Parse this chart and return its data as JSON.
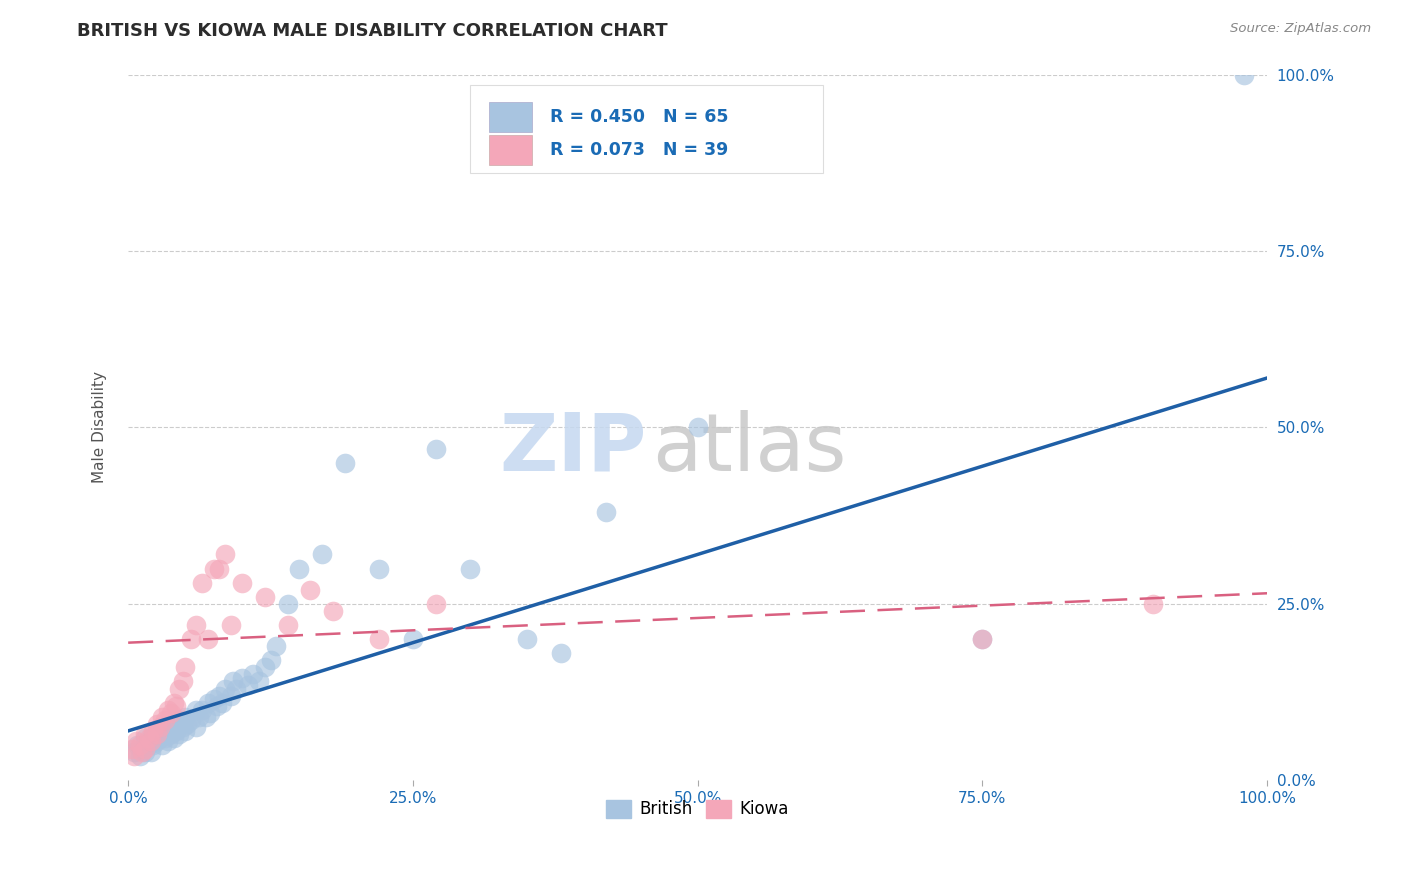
{
  "title": "BRITISH VS KIOWA MALE DISABILITY CORRELATION CHART",
  "source": "Source: ZipAtlas.com",
  "ylabel": "Male Disability",
  "xlim": [
    0.0,
    1.0
  ],
  "ylim": [
    0.0,
    1.0
  ],
  "british_R": 0.45,
  "british_N": 65,
  "kiowa_R": 0.073,
  "kiowa_N": 39,
  "british_color": "#a8c4e0",
  "kiowa_color": "#f4a7b9",
  "british_line_color": "#1f5fa6",
  "kiowa_line_color": "#d96080",
  "british_line_x0": 0.0,
  "british_line_y0": 0.07,
  "british_line_x1": 1.0,
  "british_line_y1": 0.57,
  "kiowa_line_x0": 0.0,
  "kiowa_line_y0": 0.195,
  "kiowa_line_x1": 1.0,
  "kiowa_line_y1": 0.265,
  "british_scatter_x": [
    0.005,
    0.008,
    0.01,
    0.012,
    0.015,
    0.015,
    0.018,
    0.02,
    0.02,
    0.022,
    0.025,
    0.025,
    0.028,
    0.03,
    0.03,
    0.032,
    0.035,
    0.035,
    0.038,
    0.04,
    0.04,
    0.042,
    0.045,
    0.045,
    0.048,
    0.05,
    0.05,
    0.052,
    0.055,
    0.06,
    0.06,
    0.062,
    0.065,
    0.068,
    0.07,
    0.072,
    0.075,
    0.078,
    0.08,
    0.082,
    0.085,
    0.09,
    0.092,
    0.095,
    0.1,
    0.105,
    0.11,
    0.115,
    0.12,
    0.125,
    0.13,
    0.14,
    0.15,
    0.17,
    0.19,
    0.22,
    0.25,
    0.27,
    0.3,
    0.35,
    0.38,
    0.42,
    0.5,
    0.75,
    0.98
  ],
  "british_scatter_y": [
    0.04,
    0.05,
    0.035,
    0.045,
    0.04,
    0.06,
    0.05,
    0.04,
    0.06,
    0.05,
    0.055,
    0.07,
    0.06,
    0.05,
    0.07,
    0.06,
    0.055,
    0.075,
    0.065,
    0.06,
    0.08,
    0.07,
    0.065,
    0.085,
    0.075,
    0.07,
    0.09,
    0.08,
    0.085,
    0.075,
    0.1,
    0.09,
    0.1,
    0.09,
    0.11,
    0.095,
    0.115,
    0.105,
    0.12,
    0.11,
    0.13,
    0.12,
    0.14,
    0.13,
    0.145,
    0.135,
    0.15,
    0.14,
    0.16,
    0.17,
    0.19,
    0.25,
    0.3,
    0.32,
    0.45,
    0.3,
    0.2,
    0.47,
    0.3,
    0.2,
    0.18,
    0.38,
    0.5,
    0.2,
    1.0
  ],
  "kiowa_scatter_x": [
    0.003,
    0.005,
    0.007,
    0.01,
    0.012,
    0.015,
    0.015,
    0.018,
    0.02,
    0.022,
    0.025,
    0.025,
    0.028,
    0.03,
    0.032,
    0.035,
    0.038,
    0.04,
    0.042,
    0.045,
    0.048,
    0.05,
    0.055,
    0.06,
    0.065,
    0.07,
    0.075,
    0.08,
    0.085,
    0.09,
    0.1,
    0.12,
    0.14,
    0.16,
    0.18,
    0.22,
    0.27,
    0.75,
    0.9
  ],
  "kiowa_scatter_y": [
    0.045,
    0.035,
    0.055,
    0.05,
    0.04,
    0.065,
    0.045,
    0.06,
    0.055,
    0.07,
    0.065,
    0.08,
    0.075,
    0.09,
    0.085,
    0.1,
    0.095,
    0.11,
    0.105,
    0.13,
    0.14,
    0.16,
    0.2,
    0.22,
    0.28,
    0.2,
    0.3,
    0.3,
    0.32,
    0.22,
    0.28,
    0.26,
    0.22,
    0.27,
    0.24,
    0.2,
    0.25,
    0.2,
    0.25
  ],
  "watermark_zip": "ZIP",
  "watermark_atlas": "atlas",
  "background_color": "#ffffff",
  "grid_color": "#cccccc",
  "title_color": "#2c2c2c",
  "axis_label_color": "#555555",
  "tick_color": "#1a6bb5",
  "legend_text_color": "#1a6bb5"
}
